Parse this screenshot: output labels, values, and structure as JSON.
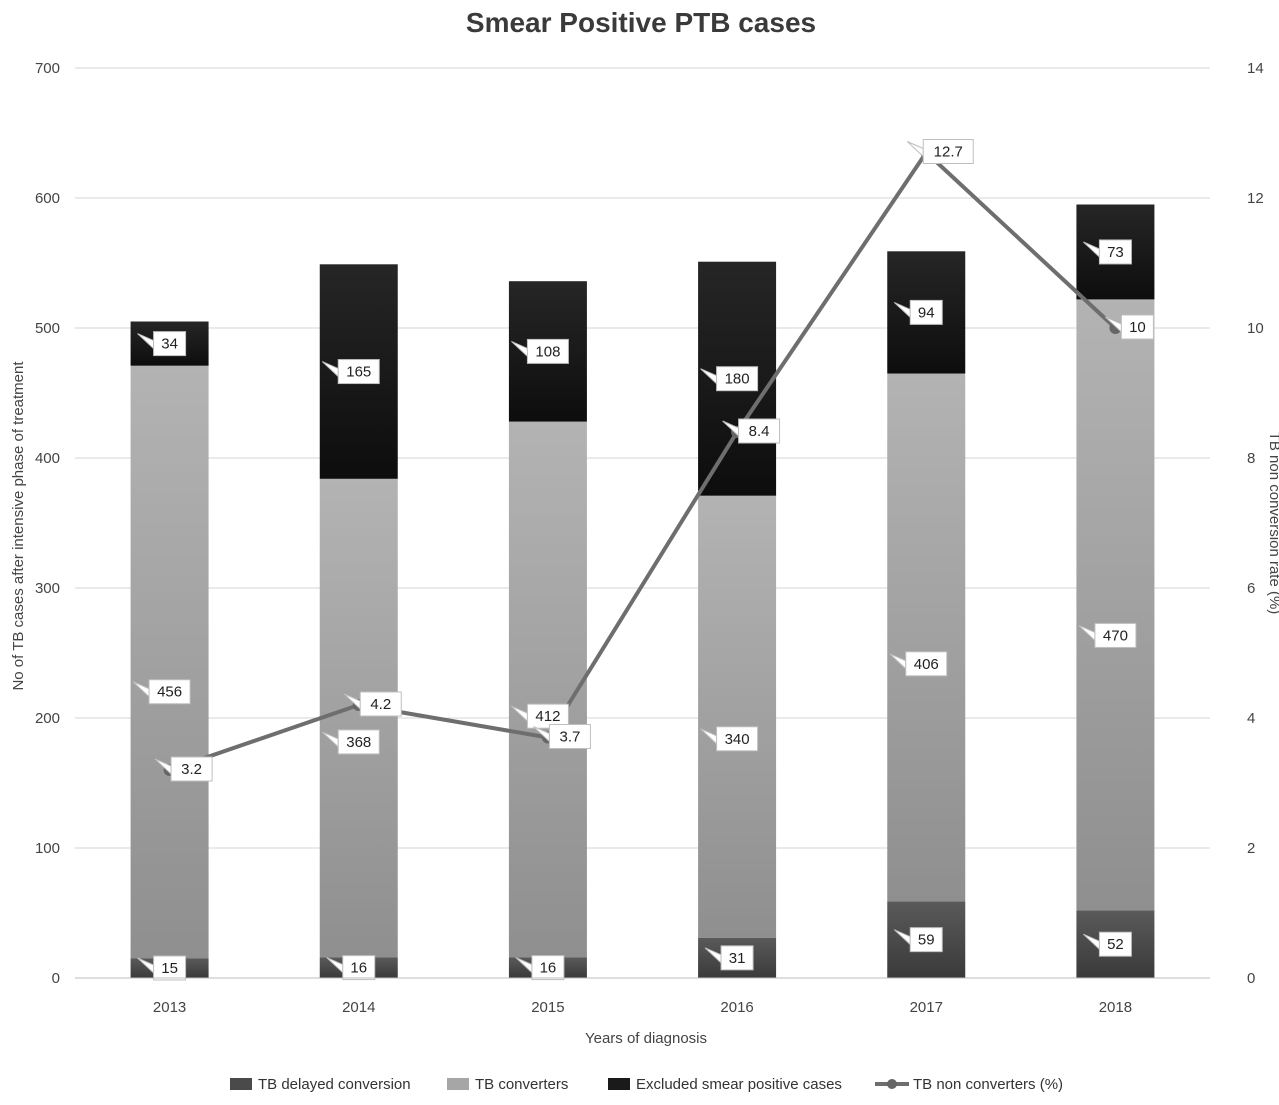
{
  "chart_data": {
    "type": "bar",
    "title": "Smear Positive PTB cases",
    "xlabel": "Years of diagnosis",
    "ylabel": "No of TB cases after intensive phase of treatment",
    "y2label": "TB non conversion rate (%)",
    "categories": [
      "2013",
      "2014",
      "2015",
      "2016",
      "2017",
      "2018"
    ],
    "ylim": [
      0,
      700
    ],
    "y_ticks": [
      "0",
      "100",
      "200",
      "300",
      "400",
      "500",
      "600",
      "700"
    ],
    "y2lim": [
      0,
      14
    ],
    "y2_ticks": [
      "0",
      "2",
      "4",
      "6",
      "8",
      "10",
      "12",
      "14"
    ],
    "grid": true,
    "legend_position": "bottom",
    "series": [
      {
        "name": "TB delayed conversion",
        "kind": "bar",
        "axis": "left",
        "color": "#4a4a4a",
        "values": [
          15,
          16,
          16,
          31,
          59,
          52
        ],
        "labels": [
          "15",
          "16",
          "16",
          "31",
          "59",
          "52"
        ]
      },
      {
        "name": "TB converters",
        "kind": "bar",
        "axis": "left",
        "color": "#a6a6a6",
        "values": [
          456,
          368,
          412,
          340,
          406,
          470
        ],
        "labels": [
          "456",
          "368",
          "412",
          "340",
          "406",
          "470"
        ]
      },
      {
        "name": "Excluded smear positive cases",
        "kind": "bar",
        "axis": "left",
        "color": "#1a1a1a",
        "values": [
          34,
          165,
          108,
          180,
          94,
          73
        ],
        "labels": [
          "34",
          "165",
          "108",
          "180",
          "94",
          "73"
        ]
      },
      {
        "name": "TB non converters (%)",
        "kind": "line",
        "axis": "right",
        "color": "#6e6e6e",
        "values": [
          3.2,
          4.2,
          3.7,
          8.4,
          12.7,
          10
        ],
        "labels": [
          "3.2",
          "4.2",
          "3.7",
          "8.4",
          "12.7",
          "10"
        ]
      }
    ]
  }
}
